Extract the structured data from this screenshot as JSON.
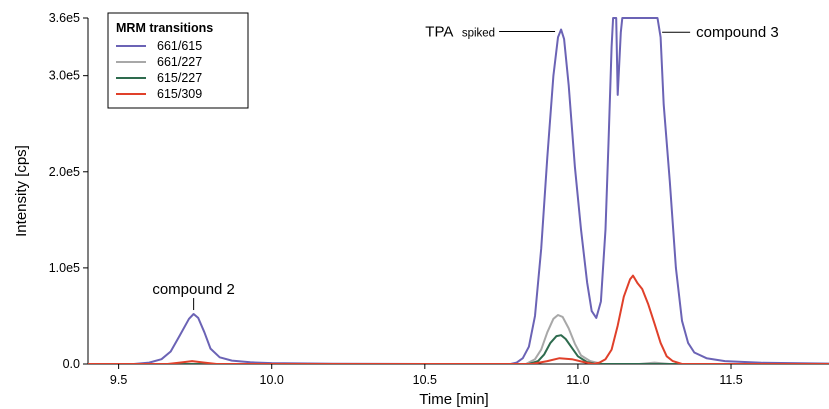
{
  "chart_data": {
    "type": "line",
    "xlabel": "Time [min]",
    "ylabel": "Intensity [cps]",
    "xlim": [
      9.4,
      11.82
    ],
    "ylim": [
      0,
      360000
    ],
    "x_ticks": [
      {
        "value": 9.5,
        "label": "9.5"
      },
      {
        "value": 10.0,
        "label": "10.0"
      },
      {
        "value": 10.5,
        "label": "10.5"
      },
      {
        "value": 11.0,
        "label": "11.0"
      },
      {
        "value": 11.5,
        "label": "11.5"
      }
    ],
    "y_ticks": [
      {
        "value": 0,
        "label": "0.0"
      },
      {
        "value": 100000,
        "label": "1.0e5"
      },
      {
        "value": 200000,
        "label": "2.0e5"
      },
      {
        "value": 300000,
        "label": "3.0e5"
      },
      {
        "value": 360000,
        "label": "3.6e5"
      }
    ],
    "grid": false,
    "legend": {
      "title": "MRM transitions",
      "position": "top-left"
    },
    "series": [
      {
        "name": "661/615",
        "color": "#6b63b5",
        "points": [
          [
            9.4,
            0
          ],
          [
            9.55,
            0
          ],
          [
            9.6,
            1500
          ],
          [
            9.64,
            5000
          ],
          [
            9.67,
            13000
          ],
          [
            9.7,
            30000
          ],
          [
            9.73,
            47000
          ],
          [
            9.745,
            52000
          ],
          [
            9.76,
            48000
          ],
          [
            9.78,
            33000
          ],
          [
            9.8,
            16000
          ],
          [
            9.83,
            7000
          ],
          [
            9.87,
            3500
          ],
          [
            9.93,
            1800
          ],
          [
            10.0,
            900
          ],
          [
            10.2,
            300
          ],
          [
            10.5,
            0
          ],
          [
            10.78,
            0
          ],
          [
            10.8,
            1500
          ],
          [
            10.82,
            6000
          ],
          [
            10.84,
            18000
          ],
          [
            10.86,
            50000
          ],
          [
            10.88,
            120000
          ],
          [
            10.9,
            215000
          ],
          [
            10.92,
            300000
          ],
          [
            10.935,
            340000
          ],
          [
            10.945,
            348000
          ],
          [
            10.955,
            338000
          ],
          [
            10.97,
            290000
          ],
          [
            10.99,
            205000
          ],
          [
            11.01,
            140000
          ],
          [
            11.03,
            85000
          ],
          [
            11.045,
            55000
          ],
          [
            11.06,
            48000
          ],
          [
            11.075,
            65000
          ],
          [
            11.09,
            140000
          ],
          [
            11.1,
            230000
          ],
          [
            11.11,
            330000
          ],
          [
            11.115,
            360000
          ],
          [
            11.125,
            360000
          ],
          [
            11.13,
            280000
          ],
          [
            11.14,
            345000
          ],
          [
            11.145,
            360000
          ],
          [
            11.26,
            360000
          ],
          [
            11.27,
            340000
          ],
          [
            11.28,
            270000
          ],
          [
            11.3,
            190000
          ],
          [
            11.32,
            100000
          ],
          [
            11.34,
            45000
          ],
          [
            11.36,
            22000
          ],
          [
            11.38,
            12000
          ],
          [
            11.42,
            6000
          ],
          [
            11.48,
            3000
          ],
          [
            11.6,
            1200
          ],
          [
            11.82,
            400
          ]
        ]
      },
      {
        "name": "661/227",
        "color": "#a8a8a8",
        "points": [
          [
            9.4,
            0
          ],
          [
            10.83,
            0
          ],
          [
            10.86,
            5000
          ],
          [
            10.88,
            15000
          ],
          [
            10.9,
            33000
          ],
          [
            10.92,
            47000
          ],
          [
            10.935,
            51000
          ],
          [
            10.95,
            49000
          ],
          [
            10.97,
            37000
          ],
          [
            10.99,
            21000
          ],
          [
            11.01,
            9000
          ],
          [
            11.04,
            3000
          ],
          [
            11.08,
            0
          ],
          [
            11.2,
            0
          ],
          [
            11.25,
            1500
          ],
          [
            11.3,
            0
          ],
          [
            11.82,
            0
          ]
        ]
      },
      {
        "name": "615/227",
        "color": "#2e6b4e",
        "points": [
          [
            9.4,
            0
          ],
          [
            10.84,
            0
          ],
          [
            10.87,
            3000
          ],
          [
            10.89,
            10000
          ],
          [
            10.91,
            22000
          ],
          [
            10.93,
            29000
          ],
          [
            10.945,
            30000
          ],
          [
            10.96,
            26000
          ],
          [
            10.98,
            17000
          ],
          [
            11.0,
            8000
          ],
          [
            11.03,
            2000
          ],
          [
            11.06,
            0
          ],
          [
            11.82,
            0
          ]
        ]
      },
      {
        "name": "615/309",
        "color": "#e0402a",
        "points": [
          [
            9.4,
            0
          ],
          [
            9.66,
            0
          ],
          [
            9.7,
            1500
          ],
          [
            9.74,
            3000
          ],
          [
            9.78,
            1500
          ],
          [
            9.82,
            0
          ],
          [
            10.85,
            0
          ],
          [
            10.9,
            3000
          ],
          [
            10.94,
            6000
          ],
          [
            10.98,
            5000
          ],
          [
            11.02,
            2000
          ],
          [
            11.05,
            0
          ],
          [
            11.07,
            1500
          ],
          [
            11.09,
            5000
          ],
          [
            11.11,
            15000
          ],
          [
            11.13,
            40000
          ],
          [
            11.15,
            70000
          ],
          [
            11.17,
            88000
          ],
          [
            11.18,
            92000
          ],
          [
            11.195,
            84000
          ],
          [
            11.21,
            78000
          ],
          [
            11.23,
            62000
          ],
          [
            11.25,
            42000
          ],
          [
            11.27,
            22000
          ],
          [
            11.29,
            8000
          ],
          [
            11.31,
            3000
          ],
          [
            11.34,
            0
          ],
          [
            11.82,
            0
          ]
        ]
      }
    ],
    "annotations": [
      {
        "text": "compound 2",
        "x": 9.745,
        "y": 52000
      },
      {
        "text": "TPA",
        "subtext": "spiked",
        "x": 10.945,
        "y": 348000
      },
      {
        "text": "compound 3",
        "x": 11.275,
        "y": 340000
      }
    ]
  }
}
